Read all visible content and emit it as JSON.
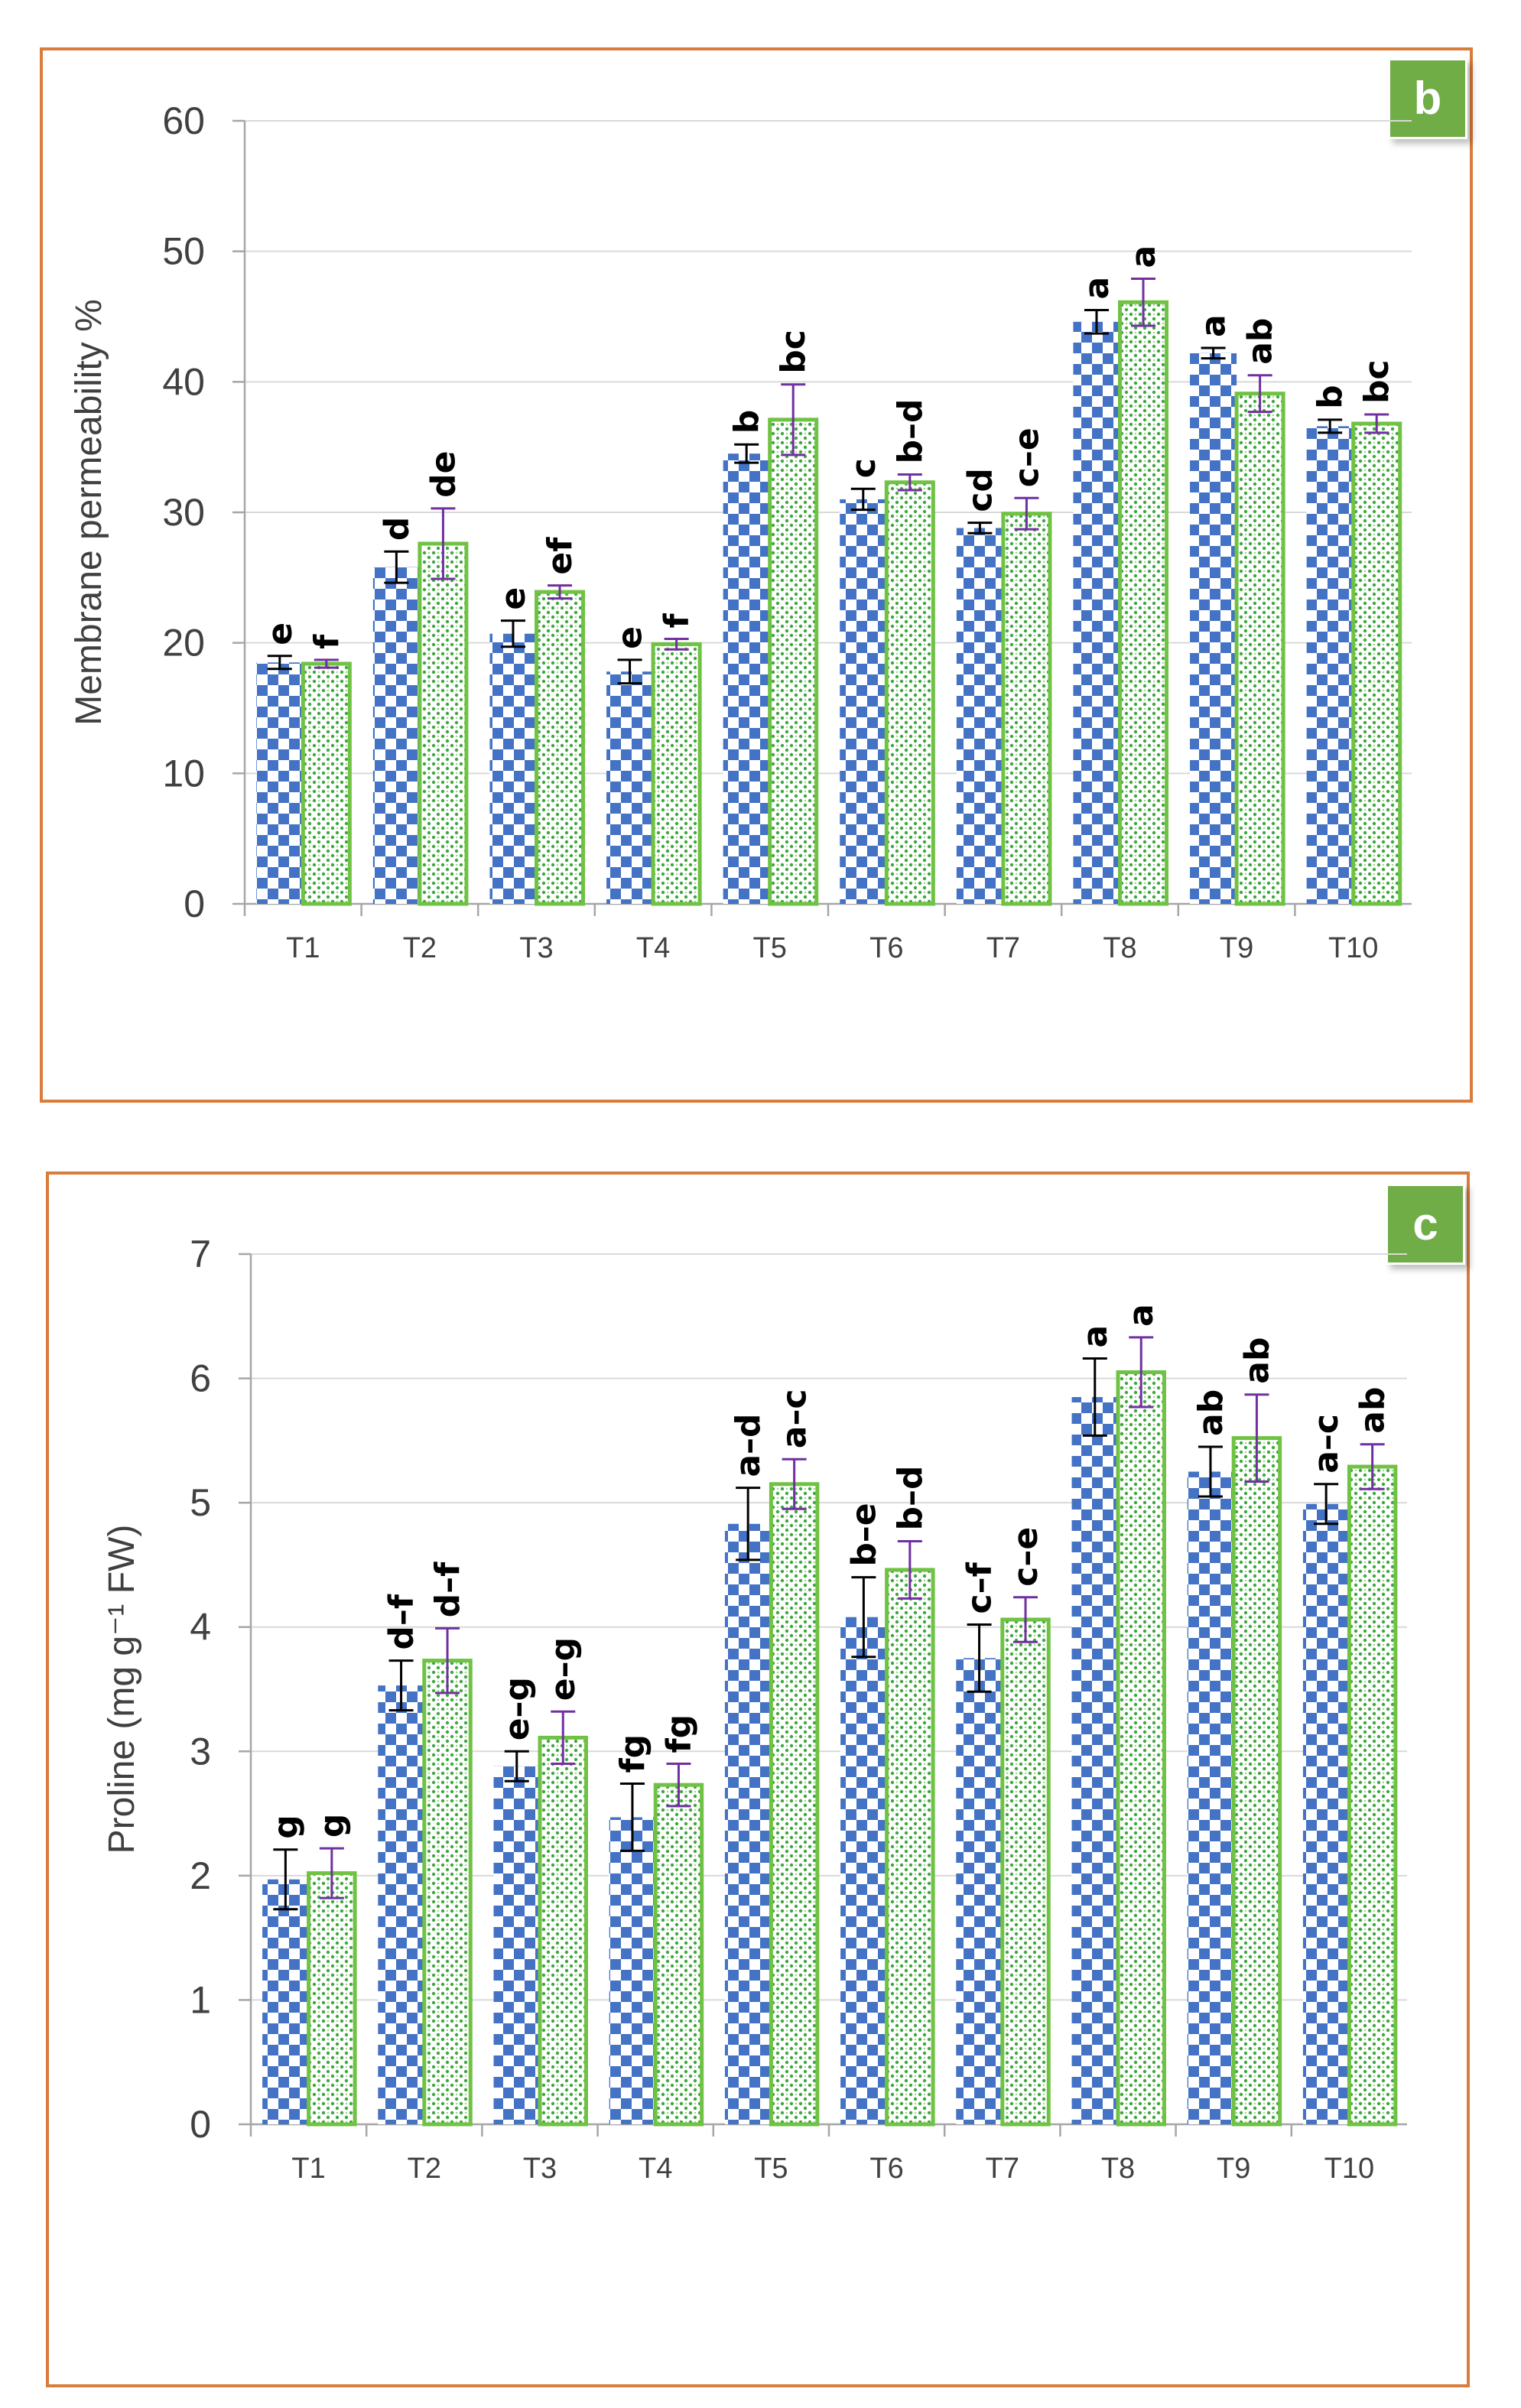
{
  "colors": {
    "series1": "#4472c4",
    "series2": "#70c244",
    "err1": "#000000",
    "err2": "#7030a0",
    "border": "#d97c3c"
  },
  "chart_data": [
    {
      "type": "bar",
      "panel_label": "b",
      "ylabel": "Membrane permeability %",
      "xlabel": "",
      "ylim": [
        0,
        60
      ],
      "yticks": [
        "0",
        "10",
        "20",
        "30",
        "40",
        "50",
        "60"
      ],
      "ytick_values": [
        0,
        10,
        20,
        30,
        40,
        50,
        60
      ],
      "categories": [
        "T1",
        "T2",
        "T3",
        "T4",
        "T5",
        "T6",
        "T7",
        "T8",
        "T9",
        "T10"
      ],
      "grid": true,
      "series": [
        {
          "name": "series-1",
          "values": [
            18.5,
            25.8,
            20.7,
            17.8,
            34.5,
            31.0,
            28.8,
            44.6,
            42.2,
            36.6
          ],
          "errors": [
            0.5,
            1.2,
            1.0,
            0.9,
            0.7,
            0.8,
            0.4,
            0.9,
            0.4,
            0.5
          ],
          "labels": [
            "e",
            "d",
            "e",
            "e",
            "b",
            "c",
            "cd",
            "a",
            "a",
            "b"
          ]
        },
        {
          "name": "series-2",
          "values": [
            18.4,
            27.6,
            23.9,
            19.9,
            37.1,
            32.3,
            29.9,
            46.1,
            39.1,
            36.8
          ],
          "errors": [
            0.3,
            2.7,
            0.5,
            0.4,
            2.7,
            0.6,
            1.2,
            1.8,
            1.4,
            0.7
          ],
          "labels": [
            "f",
            "de",
            "ef",
            "f",
            "bc",
            "b–d",
            "c–e",
            "a",
            "ab",
            "bc"
          ]
        }
      ]
    },
    {
      "type": "bar",
      "panel_label": "c",
      "ylabel": "Proline (mg g⁻¹ FW)",
      "xlabel": "",
      "ylim": [
        0,
        7
      ],
      "yticks": [
        "0",
        "1",
        "2",
        "3",
        "4",
        "5",
        "6",
        "7"
      ],
      "ytick_values": [
        0,
        1,
        2,
        3,
        4,
        5,
        6,
        7
      ],
      "categories": [
        "T1",
        "T2",
        "T3",
        "T4",
        "T5",
        "T6",
        "T7",
        "T8",
        "T9",
        "T10"
      ],
      "grid": true,
      "series": [
        {
          "name": "series-1",
          "values": [
            1.97,
            3.53,
            2.88,
            2.47,
            4.83,
            4.08,
            3.75,
            5.85,
            5.25,
            4.99
          ],
          "errors": [
            0.24,
            0.2,
            0.12,
            0.27,
            0.29,
            0.32,
            0.27,
            0.31,
            0.2,
            0.16
          ],
          "labels": [
            "g",
            "d–f",
            "e–g",
            "fg",
            "a–d",
            "b–e",
            "c–f",
            "a",
            "ab",
            "a–c"
          ]
        },
        {
          "name": "series-2",
          "values": [
            2.02,
            3.73,
            3.11,
            2.73,
            5.15,
            4.46,
            4.06,
            6.05,
            5.52,
            5.29
          ],
          "errors": [
            0.2,
            0.26,
            0.21,
            0.17,
            0.2,
            0.23,
            0.18,
            0.28,
            0.35,
            0.18
          ],
          "labels": [
            "g",
            "d–f",
            "e–g",
            "fg",
            "a–c",
            "b–d",
            "c–e",
            "a",
            "ab",
            "ab"
          ]
        }
      ]
    }
  ]
}
